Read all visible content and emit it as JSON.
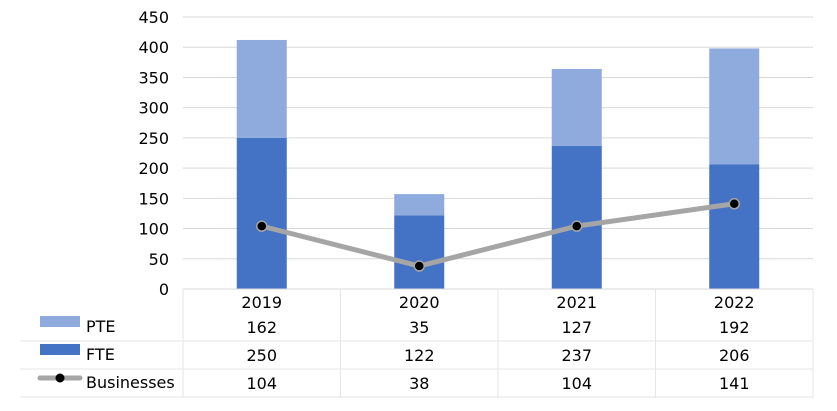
{
  "chart_data": {
    "type": "bar",
    "stacked": true,
    "categories": [
      "2019",
      "2020",
      "2021",
      "2022"
    ],
    "ylim": [
      0,
      450
    ],
    "yticks": [
      0,
      50,
      100,
      150,
      200,
      250,
      300,
      350,
      400,
      450
    ],
    "grid": true,
    "series": [
      {
        "name": "FTE",
        "kind": "bar",
        "color": "#4472c4",
        "values": [
          250,
          122,
          237,
          206
        ]
      },
      {
        "name": "PTE",
        "kind": "bar",
        "color": "#8faadc",
        "values": [
          162,
          35,
          127,
          192
        ]
      },
      {
        "name": "Businesses",
        "kind": "line",
        "color": "#a5a5a5",
        "marker_color": "#000000",
        "values": [
          104,
          38,
          104,
          141
        ]
      }
    ],
    "data_table": {
      "rows": [
        {
          "series": "PTE",
          "values": [
            "162",
            "35",
            "127",
            "192"
          ]
        },
        {
          "series": "FTE",
          "values": [
            "250",
            "122",
            "237",
            "206"
          ]
        },
        {
          "series": "Businesses",
          "values": [
            "104",
            "38",
            "104",
            "141"
          ]
        }
      ]
    }
  }
}
